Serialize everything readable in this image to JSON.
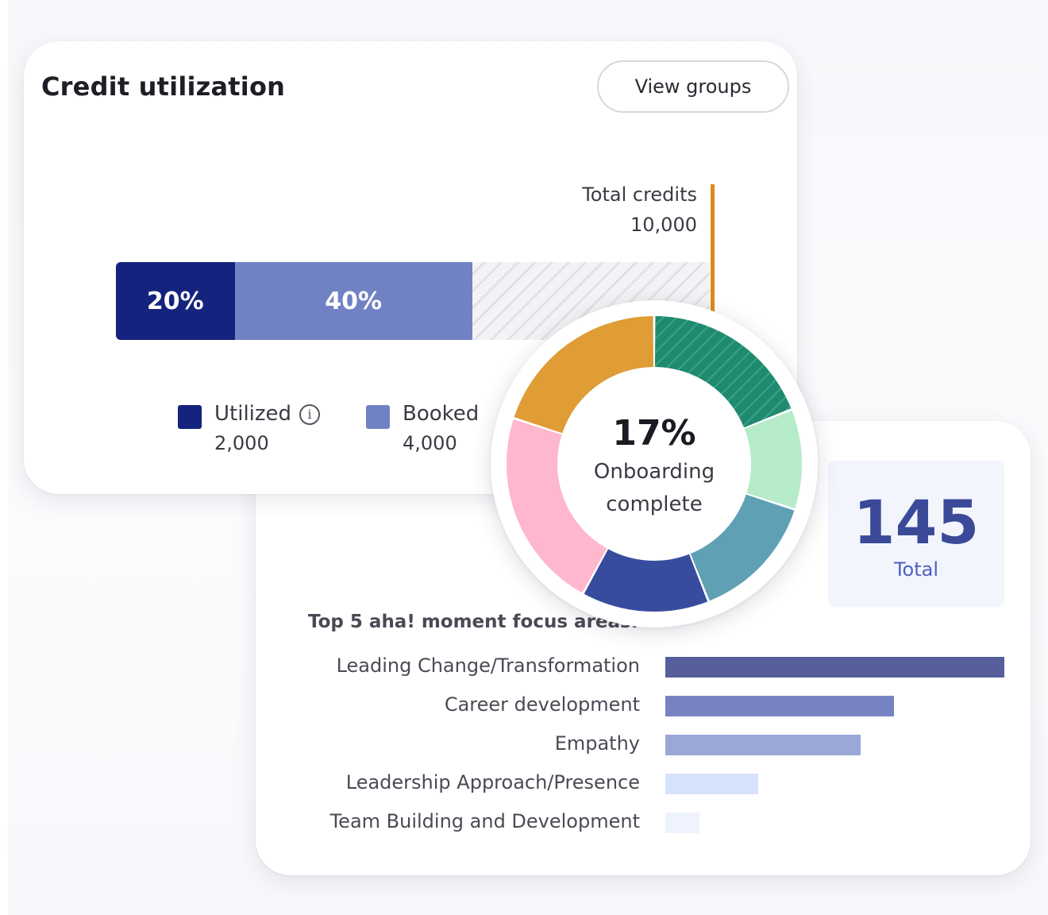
{
  "credit_card": {
    "title": "Credit utilization",
    "view_groups_label": "View groups",
    "total_label": "Total credits",
    "total_value": "10,000",
    "legend": [
      {
        "label": "Utilized",
        "value": "2,000",
        "color": "#14237d",
        "has_info_icon": true
      },
      {
        "label": "Booked",
        "value": "4,000",
        "color": "#7082c4",
        "has_info_icon": false
      }
    ]
  },
  "onboarding": {
    "percent_label": "17%",
    "line1": "Onboarding",
    "line2": "complete"
  },
  "total_box": {
    "value": "145",
    "label": "Total"
  },
  "focus_areas": {
    "title": "Top 5 aha! moment focus areas:"
  },
  "chart_data": [
    {
      "type": "bar",
      "orientation": "horizontal-stacked",
      "title": "Credit utilization",
      "total": 10000,
      "series": [
        {
          "name": "Utilized",
          "value": 2000,
          "label": "20%",
          "color": "#14237d"
        },
        {
          "name": "Booked",
          "value": 4000,
          "label": "40%",
          "color": "#7082c4"
        }
      ],
      "remainder_pattern": "hatched"
    },
    {
      "type": "pie",
      "style": "donut",
      "center_label": "17%",
      "slices": [
        {
          "value": 19,
          "color": "#1f8a6f",
          "hatched": true
        },
        {
          "value": 11,
          "color": "#b6ebca"
        },
        {
          "value": 14,
          "color": "#5fa0b4"
        },
        {
          "value": 14,
          "color": "#384c9e"
        },
        {
          "value": 22,
          "color": "#ffb7ce"
        },
        {
          "value": 20,
          "color": "#e09c35"
        }
      ]
    },
    {
      "type": "bar",
      "orientation": "horizontal",
      "title": "Top 5 aha! moment focus areas:",
      "categories": [
        "Leading Change/Transformation",
        "Career development",
        "Empathy",
        "Leadership Approach/Presence",
        "Team Building and Development"
      ],
      "values": [
        100,
        67.5,
        57.7,
        27.4,
        10.1
      ],
      "colors": [
        "#565f9b",
        "#7783c1",
        "#9aa8d8",
        "#d7e3fb",
        "#eef3fd"
      ],
      "xlim": [
        0,
        100
      ]
    }
  ]
}
